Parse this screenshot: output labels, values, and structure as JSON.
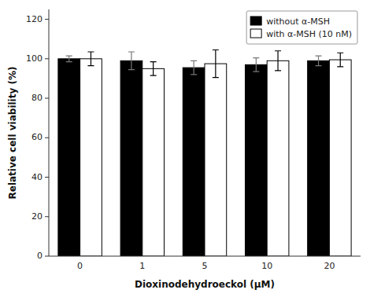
{
  "chart_data": {
    "type": "bar",
    "xlabel": "Dioxinodehydroeckol (μM)",
    "ylabel": "Relative cell viability (%)",
    "categories": [
      "0",
      "1",
      "5",
      "10",
      "20"
    ],
    "series": [
      {
        "name": "without α-MSH",
        "color": "#000000",
        "values": [
          100,
          99,
          95.5,
          97,
          99
        ],
        "errors": [
          1.5,
          4.5,
          3.5,
          3.5,
          2.5
        ]
      },
      {
        "name": "with α-MSH (10 nM)",
        "color": "#ffffff",
        "values": [
          100,
          95,
          97.5,
          99,
          99.5
        ],
        "errors": [
          3.5,
          3.5,
          7,
          5,
          3.5
        ]
      }
    ],
    "ylim": [
      0,
      125
    ],
    "yticks": [
      0,
      20,
      40,
      60,
      80,
      100,
      120
    ],
    "legend": "upper right",
    "grid": false
  }
}
